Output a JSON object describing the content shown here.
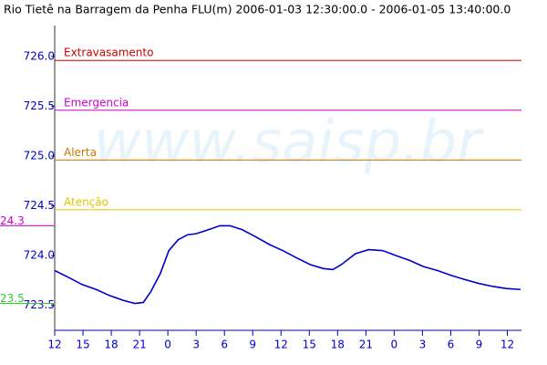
{
  "chart_data": {
    "type": "line",
    "title": "Rio Tietê na Barragem da Penha FLU(m) 2006-01-03 12:30:00.0 - 2006-01-05 13:40:00.0",
    "watermark": "www.saisp.br",
    "x": [
      0,
      1.5,
      2.9,
      4.4,
      5.8,
      7.3,
      8.5,
      9.4,
      10.2,
      11.2,
      12.1,
      13.1,
      14.1,
      15.0,
      16.3,
      17.5,
      18.6,
      19.9,
      21.3,
      22.8,
      24.2,
      25.6,
      27.1,
      28.5,
      29.5,
      30.4,
      31.9,
      33.3,
      34.8,
      36.2,
      37.7,
      39.1,
      40.6,
      42.1,
      43.5,
      45.0,
      46.5,
      47.9,
      49.4
    ],
    "series": [
      {
        "color": "#0000cc",
        "values": [
          723.85,
          723.78,
          723.71,
          723.66,
          723.6,
          723.55,
          723.52,
          723.53,
          723.64,
          723.82,
          724.05,
          724.16,
          724.21,
          724.22,
          724.26,
          724.3,
          724.3,
          724.26,
          724.19,
          724.11,
          724.05,
          723.98,
          723.91,
          723.87,
          723.86,
          723.91,
          724.02,
          724.06,
          724.05,
          724.0,
          723.95,
          723.89,
          723.85,
          723.8,
          723.76,
          723.72,
          723.69,
          723.67,
          723.66
        ]
      }
    ],
    "thresholds": [
      {
        "label": "Extravasamento",
        "value": 725.96,
        "color": "#cc0000"
      },
      {
        "label": "Emergencia",
        "value": 725.46,
        "color": "#cc00cc"
      },
      {
        "label": "Alerta",
        "value": 724.96,
        "color": "#cc7700"
      },
      {
        "label": "Atenção",
        "value": 724.46,
        "color": "#e6c200"
      }
    ],
    "markers": [
      {
        "label": "24.3",
        "value": 724.3,
        "color": "#cc00cc"
      },
      {
        "label": "23.5",
        "value": 723.52,
        "color": "#33cc33"
      }
    ],
    "xlim": [
      0,
      49.5
    ],
    "xticks": [
      {
        "value": 0,
        "label": "12"
      },
      {
        "value": 3,
        "label": "15"
      },
      {
        "value": 6,
        "label": "18"
      },
      {
        "value": 9,
        "label": "21"
      },
      {
        "value": 12,
        "label": "0"
      },
      {
        "value": 15,
        "label": "3"
      },
      {
        "value": 18,
        "label": "6"
      },
      {
        "value": 21,
        "label": "9"
      },
      {
        "value": 24,
        "label": "12"
      },
      {
        "value": 27,
        "label": "15"
      },
      {
        "value": 30,
        "label": "18"
      },
      {
        "value": 33,
        "label": "21"
      },
      {
        "value": 36,
        "label": "0"
      },
      {
        "value": 39,
        "label": "3"
      },
      {
        "value": 42,
        "label": "6"
      },
      {
        "value": 45,
        "label": "9"
      },
      {
        "value": 48,
        "label": "12"
      }
    ],
    "ylim": [
      723.25,
      726.31
    ],
    "yticks": [
      {
        "value": 723.5,
        "label": "723.5"
      },
      {
        "value": 724,
        "label": "724.0"
      },
      724.5,
      {
        "value": 725,
        "label": "725.0"
      },
      725.5,
      {
        "value": 726,
        "label": "726.0"
      }
    ]
  }
}
